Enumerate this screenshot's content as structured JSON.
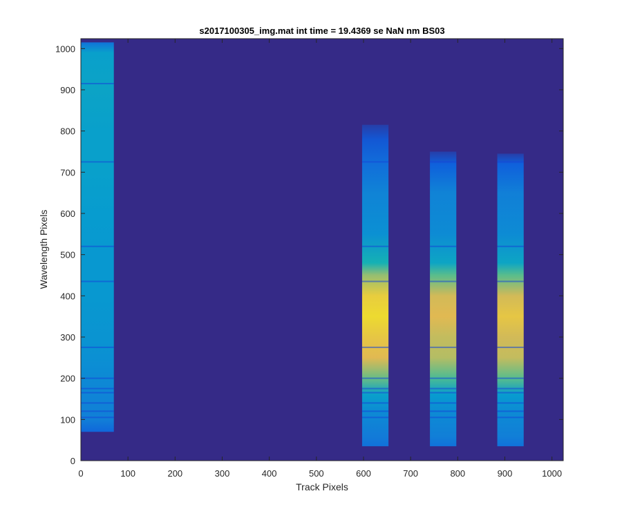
{
  "chart_data": {
    "type": "heatmap",
    "title": "s2017100305_img.mat int time = 19.4369 se  NaN nm BS03",
    "xlabel": "Track Pixels",
    "ylabel": "Wavelength Pixels",
    "xlim": [
      0,
      1024
    ],
    "ylim": [
      0,
      1024
    ],
    "xticks": [
      0,
      100,
      200,
      300,
      400,
      500,
      600,
      700,
      800,
      900,
      1000
    ],
    "yticks": [
      0,
      100,
      200,
      300,
      400,
      500,
      600,
      700,
      800,
      900,
      1000
    ],
    "grid": false,
    "colormap": "parula",
    "colors": {
      "background": "#352a87",
      "axes_text": "#262626"
    },
    "stripes": [
      {
        "x_range": [
          0,
          70
        ],
        "wavelength_profile": [
          {
            "y": 70,
            "intensity": 0.25
          },
          {
            "y": 100,
            "intensity": 0.36
          },
          {
            "y": 180,
            "intensity": 0.4
          },
          {
            "y": 250,
            "intensity": 0.44
          },
          {
            "y": 300,
            "intensity": 0.46
          },
          {
            "y": 400,
            "intensity": 0.48
          },
          {
            "y": 500,
            "intensity": 0.48
          },
          {
            "y": 600,
            "intensity": 0.5
          },
          {
            "y": 700,
            "intensity": 0.52
          },
          {
            "y": 800,
            "intensity": 0.52
          },
          {
            "y": 900,
            "intensity": 0.54
          },
          {
            "y": 990,
            "intensity": 0.52
          },
          {
            "y": 1015,
            "intensity": 0.3
          }
        ]
      },
      {
        "x_range": [
          597,
          653
        ],
        "wavelength_profile": [
          {
            "y": 35,
            "intensity": 0.3
          },
          {
            "y": 60,
            "intensity": 0.34
          },
          {
            "y": 120,
            "intensity": 0.42
          },
          {
            "y": 160,
            "intensity": 0.52
          },
          {
            "y": 200,
            "intensity": 0.74
          },
          {
            "y": 250,
            "intensity": 0.9
          },
          {
            "y": 300,
            "intensity": 0.92
          },
          {
            "y": 350,
            "intensity": 0.95
          },
          {
            "y": 400,
            "intensity": 0.93
          },
          {
            "y": 450,
            "intensity": 0.8
          },
          {
            "y": 480,
            "intensity": 0.62
          },
          {
            "y": 550,
            "intensity": 0.44
          },
          {
            "y": 650,
            "intensity": 0.38
          },
          {
            "y": 720,
            "intensity": 0.28
          },
          {
            "y": 780,
            "intensity": 0.18
          },
          {
            "y": 815,
            "intensity": 0.08
          }
        ]
      },
      {
        "x_range": [
          741,
          797
        ],
        "wavelength_profile": [
          {
            "y": 35,
            "intensity": 0.3
          },
          {
            "y": 60,
            "intensity": 0.36
          },
          {
            "y": 120,
            "intensity": 0.42
          },
          {
            "y": 160,
            "intensity": 0.5
          },
          {
            "y": 200,
            "intensity": 0.7
          },
          {
            "y": 250,
            "intensity": 0.84
          },
          {
            "y": 300,
            "intensity": 0.86
          },
          {
            "y": 350,
            "intensity": 0.9
          },
          {
            "y": 400,
            "intensity": 0.88
          },
          {
            "y": 450,
            "intensity": 0.72
          },
          {
            "y": 480,
            "intensity": 0.55
          },
          {
            "y": 550,
            "intensity": 0.42
          },
          {
            "y": 650,
            "intensity": 0.38
          },
          {
            "y": 720,
            "intensity": 0.22
          },
          {
            "y": 750,
            "intensity": 0.08
          }
        ]
      },
      {
        "x_range": [
          884,
          940
        ],
        "wavelength_profile": [
          {
            "y": 35,
            "intensity": 0.3
          },
          {
            "y": 60,
            "intensity": 0.36
          },
          {
            "y": 120,
            "intensity": 0.42
          },
          {
            "y": 160,
            "intensity": 0.5
          },
          {
            "y": 200,
            "intensity": 0.72
          },
          {
            "y": 250,
            "intensity": 0.86
          },
          {
            "y": 300,
            "intensity": 0.88
          },
          {
            "y": 350,
            "intensity": 0.92
          },
          {
            "y": 400,
            "intensity": 0.88
          },
          {
            "y": 450,
            "intensity": 0.72
          },
          {
            "y": 480,
            "intensity": 0.55
          },
          {
            "y": 550,
            "intensity": 0.42
          },
          {
            "y": 650,
            "intensity": 0.36
          },
          {
            "y": 720,
            "intensity": 0.22
          },
          {
            "y": 745,
            "intensity": 0.08
          }
        ]
      }
    ],
    "absorption_lines_y": [
      105,
      120,
      140,
      165,
      175,
      200,
      275,
      435,
      520,
      725,
      915
    ]
  }
}
